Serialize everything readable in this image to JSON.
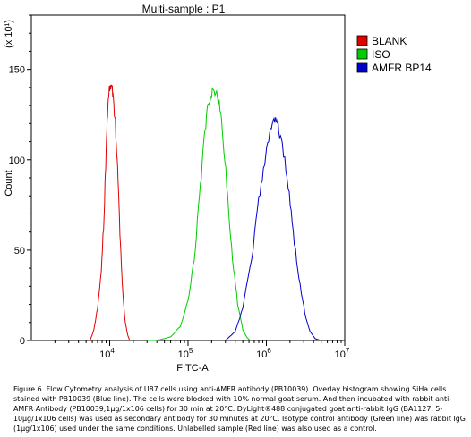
{
  "chart_data": {
    "type": "line",
    "title": "Multi-sample : P1",
    "xlabel": "FITC-A",
    "ylabel": "Count",
    "y_scale_note": "(x 10¹)",
    "x_scale": "log",
    "xlim": [
      1000,
      10000000
    ],
    "ylim": [
      0,
      180
    ],
    "x_ticks": [
      {
        "value": 10000,
        "base": "10",
        "exp": "4"
      },
      {
        "value": 100000,
        "base": "10",
        "exp": "5"
      },
      {
        "value": 1000000,
        "base": "10",
        "exp": "6"
      },
      {
        "value": 10000000,
        "base": "10",
        "exp": "7"
      }
    ],
    "y_ticks": [
      0,
      50,
      100,
      150
    ],
    "legend_position": "top-right",
    "series": [
      {
        "name": "BLANK",
        "color": "#e00000",
        "x": [
          5600,
          6300,
          7000,
          7800,
          8500,
          9000,
          9500,
          10000,
          10500,
          11000,
          11800,
          12600,
          13500,
          14500,
          15800,
          17000,
          18000
        ],
        "y": [
          0,
          6,
          18,
          38,
          70,
          105,
          130,
          140,
          142,
          137,
          120,
          95,
          60,
          30,
          10,
          3,
          0
        ]
      },
      {
        "name": "ISO",
        "color": "#00cc00",
        "x": [
          30000,
          40000,
          60000,
          80000,
          100000,
          120000,
          140000,
          160000,
          180000,
          200000,
          220000,
          250000,
          280000,
          320000,
          370000,
          430000,
          500000,
          560000,
          620000
        ],
        "y": [
          0,
          0,
          2,
          8,
          22,
          45,
          80,
          110,
          130,
          137,
          138,
          132,
          112,
          80,
          45,
          20,
          6,
          2,
          0
        ]
      },
      {
        "name": "AMFR BP14",
        "color": "#0000cc",
        "x": [
          300000,
          400000,
          500000,
          650000,
          800000,
          950000,
          1100000,
          1250000,
          1400000,
          1600000,
          1900000,
          2200000,
          2600000,
          3100000,
          3600000,
          4200000,
          5000000
        ],
        "y": [
          0,
          5,
          18,
          45,
          78,
          100,
          115,
          122,
          120,
          108,
          85,
          60,
          35,
          15,
          5,
          1,
          0
        ]
      }
    ]
  },
  "caption": "Figure 6. Flow Cytometry analysis of U87 cells using anti-AMFR antibody (PB10039).  Overlay histogram showing SiHa cells stained with PB10039 (Blue line). The cells were blocked with 10% normal goat serum. And then incubated with rabbit anti-AMFR Antibody (PB10039,1µg/1x106 cells) for 30 min at 20°C. DyLight®488 conjugated goat anti-rabbit IgG (BA1127, 5-10µg/1x106 cells) was used as secondary antibody for 30 minutes at 20°C. Isotype control antibody (Green line) was rabbit IgG (1µg/1x106) used under the same conditions. Unlabelled sample (Red line) was also used as a control."
}
